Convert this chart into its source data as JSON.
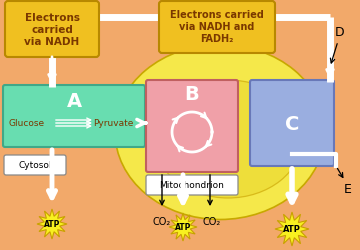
{
  "bg_color": "#f2a96a",
  "mito_color": "#f5e84a",
  "mito_inner_color": "#e8d830",
  "box_A_color": "#68ddb0",
  "box_B_color": "#f0a0a8",
  "box_C_color": "#9aaee0",
  "label_box_color": "#f0c020",
  "cytosol_box_color": "#ffffff",
  "mito_label_box_color": "#ffffff",
  "atp_color": "#f8f020",
  "atp_edge_color": "#c8a000",
  "white": "#ffffff",
  "black": "#000000",
  "text_brown": "#7a3800",
  "box_A_label": "A",
  "box_B_label": "B",
  "box_C_label": "C",
  "glucose_text": "Glucose",
  "pyruvate_text": "Pyruvate",
  "cytosol_text": "Cytosol",
  "mito_text": "Mitochondrion",
  "nadh_text": "Electrons\ncarried\nvia NADH",
  "nadhfadh_text": "Electrons carried\nvia NADH and\nFADH₂",
  "co2_text": "CO₂",
  "atp_text": "ATP",
  "label_D": "D",
  "label_E": "E",
  "figw": 3.6,
  "figh": 2.51,
  "dpi": 100
}
